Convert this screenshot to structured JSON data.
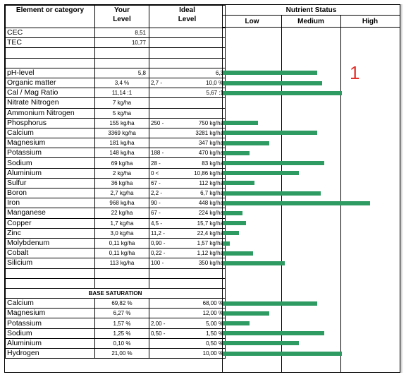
{
  "header": {
    "col_element": "Element or category",
    "col_your_1": "Your",
    "col_your_2": "Level",
    "col_ideal_1": "Ideal",
    "col_ideal_2": "Level",
    "status_title": "Nutrient Status",
    "status_low": "Low",
    "status_medium": "Medium",
    "status_high": "High"
  },
  "top": {
    "cec_label": "CEC",
    "cec_value": "8,51",
    "tec_label": "TEC",
    "tec_value": "10,77"
  },
  "rows": [
    {
      "name": "pH-level",
      "value": "5,8",
      "ideal_low": "",
      "ideal_high": "6,3",
      "bar_level": 0.53
    },
    {
      "name": "Organic matter",
      "value": "3,4 %",
      "ideal_low": "2,7  -",
      "ideal_high": "10,0 %",
      "bar_level": 0.56
    },
    {
      "name": "Cal / Mag Ratio",
      "value": "11,14 :1",
      "ideal_low": "",
      "ideal_high": "5,67 :1",
      "bar_level": 0.67
    },
    {
      "name": "Nitrate Nitrogen",
      "value": "7 kg/ha",
      "ideal_low": "",
      "ideal_high": "",
      "bar_level": 0
    },
    {
      "name": "Ammonium Nitrogen",
      "value": "5 kg/ha",
      "ideal_low": "",
      "ideal_high": "",
      "bar_level": 0
    },
    {
      "name": "Phosphorus",
      "value": "155 kg/ha",
      "ideal_low": "250  -",
      "ideal_high": "750 kg/ha",
      "bar_level": 0.2
    },
    {
      "name": "Calcium",
      "value": "3369 kg/ha",
      "ideal_low": "",
      "ideal_high": "3281 kg/ha",
      "bar_level": 0.53
    },
    {
      "name": "Magnesium",
      "value": "181 kg/ha",
      "ideal_low": "",
      "ideal_high": "347 kg/ha",
      "bar_level": 0.26
    },
    {
      "name": "Potassium",
      "value": "148 kg/ha",
      "ideal_low": "188  -",
      "ideal_high": "470 kg/ha",
      "bar_level": 0.15
    },
    {
      "name": "Sodium",
      "value": "69 kg/ha",
      "ideal_low": "28  -",
      "ideal_high": "83 kg/ha",
      "bar_level": 0.57
    },
    {
      "name": "Aluminium",
      "value": "2 kg/ha",
      "ideal_low": "0  <",
      "ideal_high": "10,86 kg/ha",
      "bar_level": 0.43
    },
    {
      "name": "Sulfur",
      "value": "36 kg/ha",
      "ideal_low": "67  -",
      "ideal_high": "112 kg/ha",
      "bar_level": 0.18
    },
    {
      "name": "Boron",
      "value": "2,7 kg/ha",
      "ideal_low": "2,2  -",
      "ideal_high": "6,7 kg/ha",
      "bar_level": 0.55
    },
    {
      "name": "Iron",
      "value": "968 kg/ha",
      "ideal_low": "90  -",
      "ideal_high": "448 kg/ha",
      "bar_level": 0.83
    },
    {
      "name": "Manganese",
      "value": "22 kg/ha",
      "ideal_low": "67  -",
      "ideal_high": "224 kg/ha",
      "bar_level": 0.11
    },
    {
      "name": "Copper",
      "value": "1,7 kg/ha",
      "ideal_low": "4,5  -",
      "ideal_high": "15,7 kg/ha",
      "bar_level": 0.13
    },
    {
      "name": "Zinc",
      "value": "3,0 kg/ha",
      "ideal_low": "11,2  -",
      "ideal_high": "22,4 kg/ha",
      "bar_level": 0.09
    },
    {
      "name": "Molybdenum",
      "value": "0,11 kg/ha",
      "ideal_low": "0,90  -",
      "ideal_high": "1,57 kg/ha",
      "bar_level": 0.04
    },
    {
      "name": "Cobalt",
      "value": "0,11 kg/ha",
      "ideal_low": "0,22  -",
      "ideal_high": "1,12 kg/ha",
      "bar_level": 0.17
    },
    {
      "name": "Silicium",
      "value": "113 kg/ha",
      "ideal_low": "100  -",
      "ideal_high": "350 kg/ha",
      "bar_level": 0.35
    }
  ],
  "base_saturation": {
    "title": "BASE SATURATION",
    "rows": [
      {
        "name": "Calcium",
        "value": "69,82 %",
        "ideal_low": "",
        "ideal_high": "68,00 %",
        "bar_level": 0.53
      },
      {
        "name": "Magnesium",
        "value": "6,27 %",
        "ideal_low": "",
        "ideal_high": "12,00 %",
        "bar_level": 0.26
      },
      {
        "name": "Potassium",
        "value": "1,57 %",
        "ideal_low": "2,00  -",
        "ideal_high": "5,00 %",
        "bar_level": 0.15
      },
      {
        "name": "Sodium",
        "value": "1,25 %",
        "ideal_low": "0,50  -",
        "ideal_high": "1,50 %",
        "bar_level": 0.57
      },
      {
        "name": "Aluminium",
        "value": "0,10 %",
        "ideal_low": "",
        "ideal_high": "0,50 %",
        "bar_level": 0.43
      },
      {
        "name": "Hydrogen",
        "value": "21,00 %",
        "ideal_low": "",
        "ideal_high": "10,00 %",
        "bar_level": 0.67
      }
    ]
  },
  "annotation": {
    "marker": "1",
    "color": "#e3312b"
  },
  "colors": {
    "bar": "#2e9b63"
  }
}
